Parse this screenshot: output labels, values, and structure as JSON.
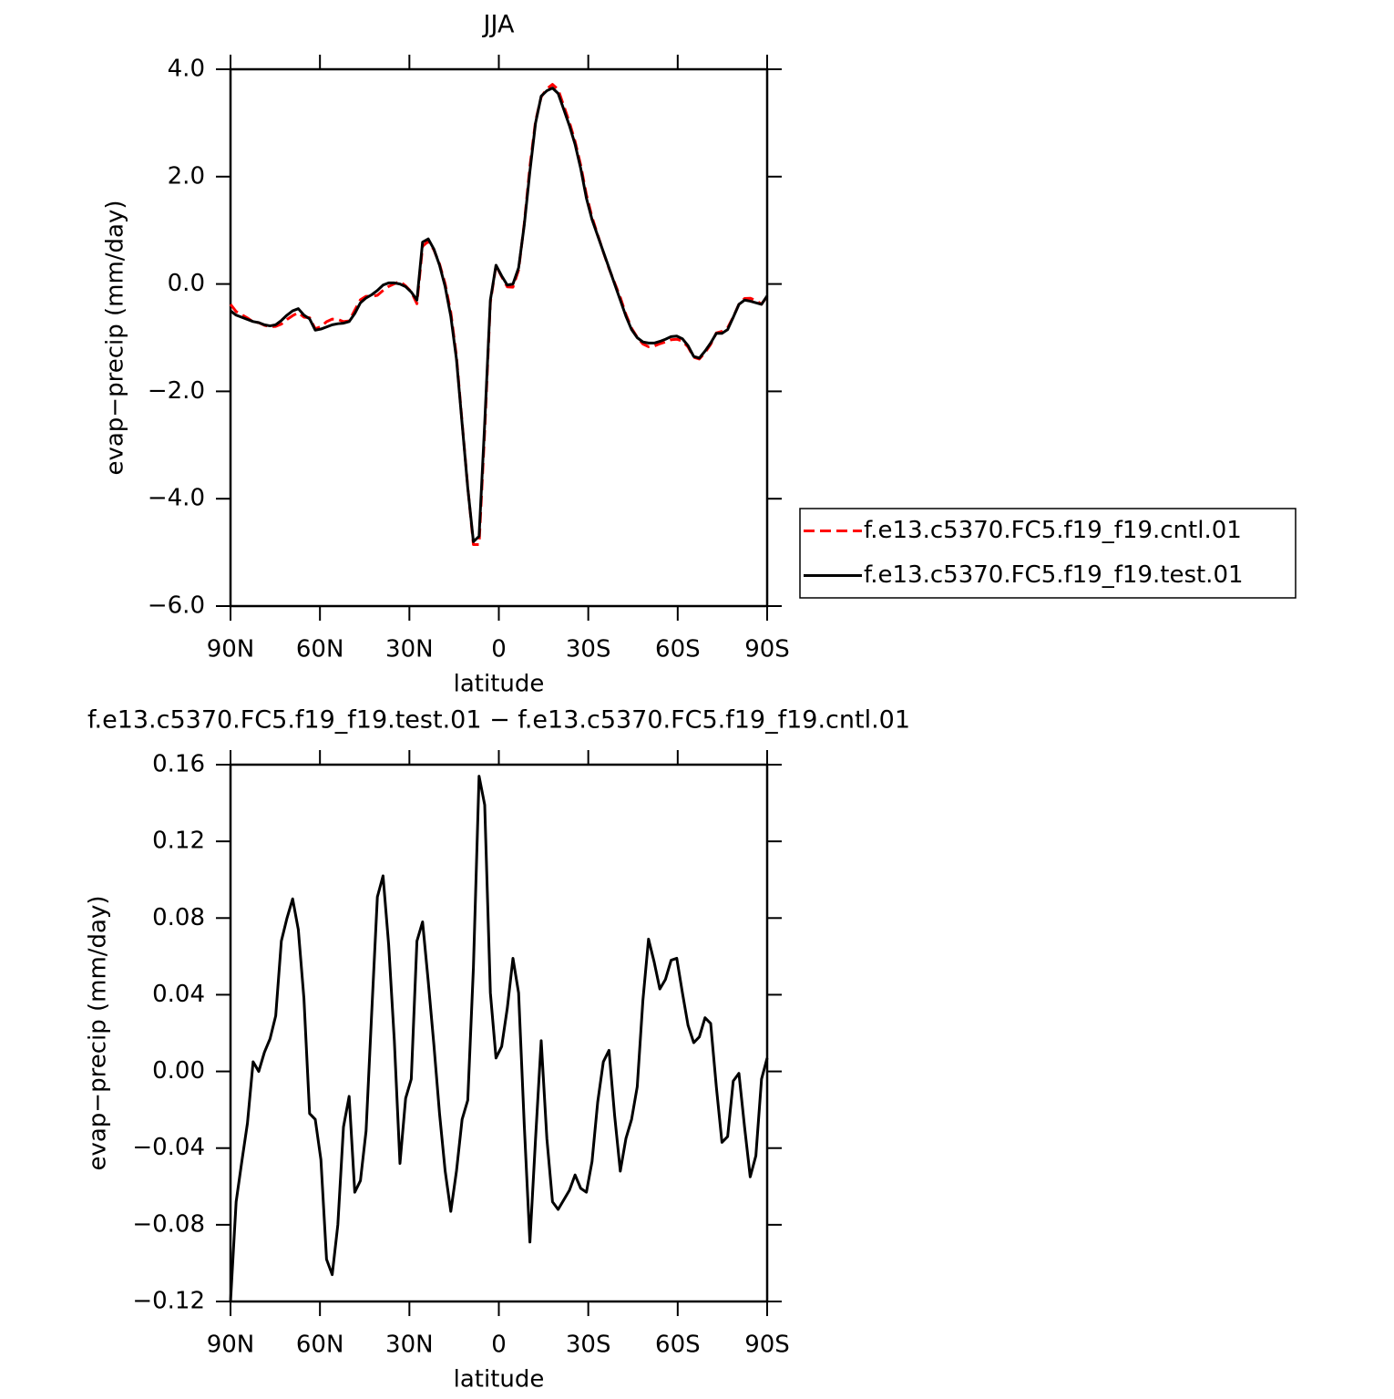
{
  "chart_data": [
    {
      "type": "line",
      "title": "JJA",
      "xlabel": "latitude",
      "ylabel": "evap−precip (mm/day)",
      "x": [
        90,
        88.11,
        86.21,
        84.32,
        82.42,
        80.53,
        78.63,
        76.74,
        74.84,
        72.95,
        71.05,
        69.16,
        67.26,
        65.37,
        63.47,
        61.58,
        59.68,
        57.79,
        55.89,
        54.0,
        52.11,
        50.21,
        48.32,
        46.42,
        44.53,
        42.63,
        40.74,
        38.84,
        36.95,
        35.05,
        33.16,
        31.26,
        29.37,
        27.47,
        25.58,
        23.68,
        21.79,
        19.89,
        18.0,
        16.11,
        14.21,
        12.32,
        10.42,
        8.53,
        6.63,
        4.74,
        2.84,
        0.95,
        -0.95,
        -2.84,
        -4.74,
        -6.63,
        -8.53,
        -10.42,
        -12.32,
        -14.21,
        -16.11,
        -18.0,
        -19.89,
        -21.79,
        -23.68,
        -25.58,
        -27.47,
        -29.37,
        -31.26,
        -33.16,
        -35.05,
        -36.95,
        -38.84,
        -40.74,
        -42.63,
        -44.53,
        -46.42,
        -48.32,
        -50.21,
        -52.11,
        -54.0,
        -55.89,
        -57.79,
        -59.68,
        -61.58,
        -63.47,
        -65.37,
        -67.26,
        -69.16,
        -71.05,
        -72.95,
        -74.84,
        -76.74,
        -78.63,
        -80.53,
        -82.42,
        -84.32,
        -86.21,
        -88.11,
        -90
      ],
      "series": [
        {
          "name": "f.e13.c5370.FC5.f19_f19.cntl.01",
          "color": "#ff0000",
          "dashed": true,
          "values": [
            -0.38,
            -0.512,
            -0.573,
            -0.633,
            -0.705,
            -0.72,
            -0.77,
            -0.797,
            -0.789,
            -0.748,
            -0.66,
            -0.59,
            -0.534,
            -0.618,
            -0.628,
            -0.835,
            -0.794,
            -0.702,
            -0.654,
            -0.66,
            -0.701,
            -0.687,
            -0.487,
            -0.293,
            -0.229,
            -0.231,
            -0.211,
            -0.122,
            -0.046,
            0.004,
            0.048,
            -0.036,
            -0.146,
            -0.368,
            0.702,
            0.793,
            0.636,
            0.372,
            0.002,
            -0.527,
            -1.348,
            -2.575,
            -3.785,
            -4.854,
            -4.854,
            -2.739,
            -0.341,
            0.343,
            0.137,
            -0.053,
            -0.059,
            0.259,
            1.128,
            2.189,
            3.035,
            3.484,
            3.635,
            3.718,
            3.622,
            3.317,
            3.012,
            2.654,
            2.211,
            1.663,
            1.247,
            0.916,
            0.595,
            0.289,
            0.023,
            -0.248,
            -0.565,
            -0.825,
            -0.992,
            -1.117,
            -1.169,
            -1.157,
            -1.113,
            -1.078,
            -1.038,
            -1.029,
            -1.061,
            -1.174,
            -1.365,
            -1.398,
            -1.278,
            -1.125,
            -0.912,
            -0.883,
            -0.816,
            -0.615,
            -0.379,
            -0.271,
            -0.265,
            -0.306,
            -0.376,
            -0.227
          ]
        },
        {
          "name": "f.e13.c5370.FC5.f19_f19.test.01",
          "color": "#000000",
          "dashed": false,
          "values": [
            -0.5,
            -0.58,
            -0.62,
            -0.66,
            -0.7,
            -0.72,
            -0.76,
            -0.78,
            -0.76,
            -0.68,
            -0.58,
            -0.5,
            -0.46,
            -0.58,
            -0.65,
            -0.86,
            -0.84,
            -0.8,
            -0.76,
            -0.74,
            -0.73,
            -0.7,
            -0.55,
            -0.35,
            -0.26,
            -0.2,
            -0.12,
            -0.02,
            0.02,
            0.02,
            0.0,
            -0.05,
            -0.15,
            -0.3,
            0.78,
            0.84,
            0.65,
            0.35,
            -0.05,
            -0.6,
            -1.4,
            -2.6,
            -3.8,
            -4.8,
            -4.7,
            -2.6,
            -0.3,
            0.35,
            0.15,
            -0.02,
            0.0,
            0.3,
            1.1,
            2.1,
            3.0,
            3.5,
            3.6,
            3.65,
            3.55,
            3.25,
            2.95,
            2.6,
            2.15,
            1.6,
            1.2,
            0.9,
            0.6,
            0.3,
            0.0,
            -0.3,
            -0.6,
            -0.85,
            -1.0,
            -1.08,
            -1.1,
            -1.1,
            -1.07,
            -1.03,
            -0.98,
            -0.97,
            -1.02,
            -1.15,
            -1.35,
            -1.38,
            -1.25,
            -1.1,
            -0.92,
            -0.92,
            -0.85,
            -0.62,
            -0.38,
            -0.3,
            -0.32,
            -0.35,
            -0.38,
            -0.22
          ]
        }
      ],
      "xlim": [
        90,
        -90
      ],
      "xticks": [
        {
          "value": 90,
          "label": "90N"
        },
        {
          "value": 60,
          "label": "60N"
        },
        {
          "value": 30,
          "label": "30N"
        },
        0,
        {
          "value": -30,
          "label": "30S"
        },
        {
          "value": -60,
          "label": "60S"
        },
        {
          "value": -90,
          "label": "90S"
        }
      ],
      "ylim": [
        -6,
        4
      ],
      "yticks": [
        {
          "value": -6,
          "label": "−6.0"
        },
        {
          "value": -4,
          "label": "−4.0"
        },
        {
          "value": -2,
          "label": "−2.0"
        },
        {
          "value": 0,
          "label": "0.0"
        },
        {
          "value": 2,
          "label": "2.0"
        },
        {
          "value": 4,
          "label": "4.0"
        }
      ],
      "legend": "right",
      "grid": false
    },
    {
      "type": "line",
      "title": "f.e13.c5370.FC5.f19_f19.test.01 − f.e13.c5370.FC5.f19_f19.cntl.01",
      "xlabel": "latitude",
      "ylabel": "evap−precip (mm/day)",
      "x": [
        90,
        88.11,
        86.21,
        84.32,
        82.42,
        80.53,
        78.63,
        76.74,
        74.84,
        72.95,
        71.05,
        69.16,
        67.26,
        65.37,
        63.47,
        61.58,
        59.68,
        57.79,
        55.89,
        54.0,
        52.11,
        50.21,
        48.32,
        46.42,
        44.53,
        42.63,
        40.74,
        38.84,
        36.95,
        35.05,
        33.16,
        31.26,
        29.37,
        27.47,
        25.58,
        23.68,
        21.79,
        19.89,
        18.0,
        16.11,
        14.21,
        12.32,
        10.42,
        8.53,
        6.63,
        4.74,
        2.84,
        0.95,
        -0.95,
        -2.84,
        -4.74,
        -6.63,
        -8.53,
        -10.42,
        -12.32,
        -14.21,
        -16.11,
        -18.0,
        -19.89,
        -21.79,
        -23.68,
        -25.58,
        -27.47,
        -29.37,
        -31.26,
        -33.16,
        -35.05,
        -36.95,
        -38.84,
        -40.74,
        -42.63,
        -44.53,
        -46.42,
        -48.32,
        -50.21,
        -52.11,
        -54.0,
        -55.89,
        -57.79,
        -59.68,
        -61.58,
        -63.47,
        -65.37,
        -67.26,
        -69.16,
        -71.05,
        -72.95,
        -74.84,
        -76.74,
        -78.63,
        -80.53,
        -82.42,
        -84.32,
        -86.21,
        -88.11,
        -90
      ],
      "color": "#000000",
      "values": [
        -0.12,
        -0.068,
        -0.047,
        -0.027,
        0.005,
        0.0,
        0.01,
        0.017,
        0.029,
        0.068,
        0.08,
        0.09,
        0.074,
        0.038,
        -0.022,
        -0.025,
        -0.046,
        -0.098,
        -0.106,
        -0.08,
        -0.029,
        -0.013,
        -0.063,
        -0.057,
        -0.031,
        0.031,
        0.091,
        0.102,
        0.066,
        0.016,
        -0.048,
        -0.014,
        -0.004,
        0.068,
        0.078,
        0.047,
        0.014,
        -0.022,
        -0.052,
        -0.073,
        -0.052,
        -0.025,
        -0.015,
        0.054,
        0.154,
        0.139,
        0.041,
        0.007,
        0.013,
        0.033,
        0.059,
        0.041,
        -0.028,
        -0.089,
        -0.035,
        0.016,
        -0.035,
        -0.068,
        -0.072,
        -0.067,
        -0.062,
        -0.054,
        -0.061,
        -0.063,
        -0.047,
        -0.016,
        0.005,
        0.011,
        -0.023,
        -0.052,
        -0.035,
        -0.025,
        -0.008,
        0.037,
        0.069,
        0.057,
        0.043,
        0.048,
        0.058,
        0.059,
        0.041,
        0.024,
        0.015,
        0.018,
        0.028,
        0.025,
        -0.008,
        -0.037,
        -0.034,
        -0.005,
        -0.001,
        -0.029,
        -0.055,
        -0.044,
        -0.004,
        0.007
      ],
      "xlim": [
        90,
        -90
      ],
      "xticks": [
        {
          "value": 90,
          "label": "90N"
        },
        {
          "value": 60,
          "label": "60N"
        },
        {
          "value": 30,
          "label": "30N"
        },
        0,
        {
          "value": -30,
          "label": "30S"
        },
        {
          "value": -60,
          "label": "60S"
        },
        {
          "value": -90,
          "label": "90S"
        }
      ],
      "ylim": [
        -0.12,
        0.16
      ],
      "yticks": [
        {
          "value": -0.12,
          "label": "−0.12"
        },
        {
          "value": -0.08,
          "label": "−0.08"
        },
        {
          "value": -0.04,
          "label": "−0.04"
        },
        {
          "value": 0,
          "label": "0.00"
        },
        0.04,
        0.08,
        0.12,
        0.16
      ],
      "grid": false
    }
  ]
}
